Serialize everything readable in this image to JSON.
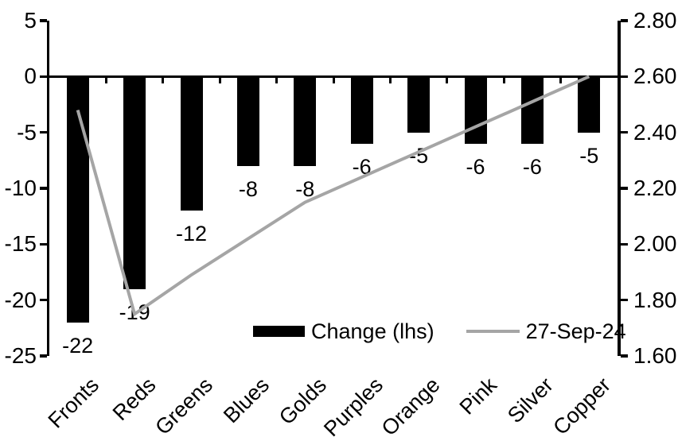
{
  "chart_data": {
    "type": "combo (bar + line)",
    "title": "",
    "categories": [
      "Fronts",
      "Reds",
      "Greens",
      "Blues",
      "Golds",
      "Purples",
      "Orange",
      "Pink",
      "Silver",
      "Copper"
    ],
    "series": [
      {
        "name": "Change (lhs)",
        "type": "bar",
        "axis": "left",
        "color": "#000000",
        "values": [
          -22,
          -19,
          -12,
          -8,
          -8,
          -6,
          -5,
          -6,
          -6,
          -5
        ],
        "data_labels": [
          "-22",
          "-19",
          "-12",
          "-8",
          "-8",
          "-6",
          "-5",
          "-6",
          "-6",
          "-5"
        ]
      },
      {
        "name": "27-Sep-24",
        "type": "line",
        "axis": "right",
        "color": "#a5a5a5",
        "values": [
          2.48,
          1.75,
          1.89,
          2.02,
          2.15,
          2.24,
          2.33,
          2.42,
          2.51,
          2.6
        ]
      }
    ],
    "left_axis": {
      "min": -25,
      "max": 5,
      "tick_labels": [
        "5",
        "0",
        "-5",
        "-10",
        "-15",
        "-20",
        "-25"
      ]
    },
    "right_axis": {
      "min": 1.6,
      "max": 2.8,
      "tick_labels": [
        "2.80",
        "2.60",
        "2.40",
        "2.20",
        "2.00",
        "1.80",
        "1.60"
      ]
    },
    "xlabel": "",
    "ylabel": "",
    "grid": "off",
    "legend_position": "bottom-center",
    "axis_color": "#000000"
  }
}
